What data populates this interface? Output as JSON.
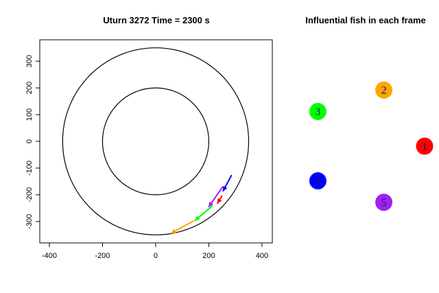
{
  "chart_data": [
    {
      "type": "scatter",
      "title": "Uturn 3272  Time =   2300 s",
      "xlabel": "",
      "ylabel": "",
      "xlim": [
        -436,
        439
      ],
      "ylim": [
        -380,
        380
      ],
      "xticks": [
        -400,
        -200,
        0,
        200,
        400
      ],
      "yticks": [
        -300,
        -200,
        -100,
        0,
        100,
        200,
        300
      ],
      "grid": false,
      "circles": [
        {
          "cx": 0,
          "cy": 0,
          "r": 350,
          "color": "#000000"
        },
        {
          "cx": 0,
          "cy": 0,
          "r": 200,
          "color": "#000000"
        }
      ],
      "arrows": [
        {
          "fish": 4,
          "color": "#0000ff",
          "x0": 286,
          "y0": -126,
          "x1": 253,
          "y1": -187
        },
        {
          "fish": 5,
          "color": "#a020f0",
          "x0": 253,
          "y0": -169,
          "x1": 199,
          "y1": -246
        },
        {
          "fish": 1,
          "color": "#ff0000",
          "x0": 250,
          "y0": -203,
          "x1": 232,
          "y1": -233
        },
        {
          "fish": 3,
          "color": "#00ff00",
          "x0": 214,
          "y0": -241,
          "x1": 147,
          "y1": -297
        },
        {
          "fish": 2,
          "color": "#ffa500",
          "x0": 145,
          "y0": -297,
          "x1": 57,
          "y1": -344
        }
      ]
    },
    {
      "type": "network",
      "title": "Influential fish in each frame",
      "nodes": [
        {
          "label": "1",
          "color": "#ff0000",
          "angle_deg": 0
        },
        {
          "label": "2",
          "color": "#ffa500",
          "angle_deg": 72
        },
        {
          "label": "3",
          "color": "#00ff00",
          "angle_deg": 144
        },
        {
          "label": "4",
          "color": "#0000ff",
          "angle_deg": 216
        },
        {
          "label": "5",
          "color": "#a020f0",
          "angle_deg": 288
        }
      ],
      "edges": []
    }
  ]
}
